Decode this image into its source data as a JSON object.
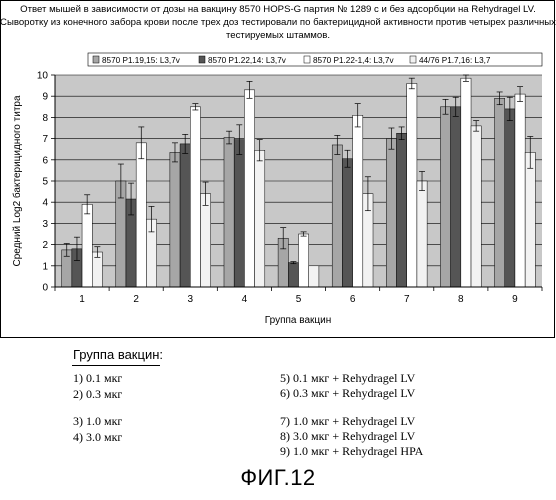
{
  "chart_data": {
    "type": "bar",
    "title_lines": [
      "Ответ мышей в зависимости от дозы на вакцину 8570 HOPS-G партия № 1289 с и без адсорбции на Rehydragel LV.",
      "Сыворотку из конечного забора крови после трех доз тестировали по бактерицидной активности против четырех различных",
      "тестируемых штаммов."
    ],
    "xlabel": "Группа вакцин",
    "ylabel_lines": [
      "Средний Log2 бактерицидного титра"
    ],
    "ylim": [
      0,
      10
    ],
    "yticks": [
      "0",
      "1",
      "2",
      "3",
      "4",
      "5",
      "6",
      "7",
      "8",
      "9",
      "10"
    ],
    "grid": "horizontal",
    "legend_position": "top",
    "categories": [
      "1",
      "2",
      "3",
      "4",
      "5",
      "6",
      "7",
      "8",
      "9"
    ],
    "series": [
      {
        "name": "8570 P1.19,15: L3,7v",
        "color": "#a6a6a6",
        "values": [
          1.75,
          5.0,
          6.35,
          7.05,
          2.3,
          6.7,
          7.0,
          8.5,
          8.9
        ],
        "errors": [
          0.3,
          0.8,
          0.45,
          0.3,
          0.5,
          0.45,
          0.5,
          0.35,
          0.3
        ]
      },
      {
        "name": "8570 P1.22,14: L3,7v",
        "color": "#555555",
        "values": [
          1.8,
          4.15,
          6.75,
          6.95,
          1.15,
          6.05,
          7.25,
          8.5,
          8.4
        ],
        "errors": [
          0.55,
          0.75,
          0.45,
          0.7,
          0.05,
          0.4,
          0.3,
          0.45,
          0.55
        ]
      },
      {
        "name": "8570 P1.22-1,4: L3,7v",
        "color": "#ffffff",
        "values": [
          3.9,
          6.8,
          8.5,
          9.3,
          2.5,
          8.1,
          9.6,
          9.85,
          9.1
        ],
        "errors": [
          0.45,
          0.75,
          0.15,
          0.4,
          0.1,
          0.55,
          0.25,
          0.15,
          0.35
        ]
      },
      {
        "name": "44/76 P1.7,16: L3,7",
        "color": "#f2f2f2",
        "values": [
          1.65,
          3.2,
          4.4,
          6.45,
          1.0,
          4.4,
          5.0,
          7.6,
          6.35
        ],
        "errors": [
          0.25,
          0.6,
          0.55,
          0.5,
          0.0,
          0.8,
          0.45,
          0.25,
          0.75
        ]
      }
    ]
  },
  "legend_block": {
    "title": "Группа вакцин:",
    "left_items": [
      "1) 0.1 мкг",
      "2) 0.3 мкг",
      "3) 1.0 мкг",
      "4) 3.0 мкг"
    ],
    "right_items": [
      "5) 0.1 мкг + Rehydragel LV",
      "6) 0.3 мкг + Rehydragel LV",
      "7) 1.0 мкг + Rehydragel LV",
      "8) 3.0 мкг + Rehydragel LV",
      "9) 1.0 мкг + Rehydragel HPA"
    ]
  },
  "figure_label": "ФИГ.12"
}
